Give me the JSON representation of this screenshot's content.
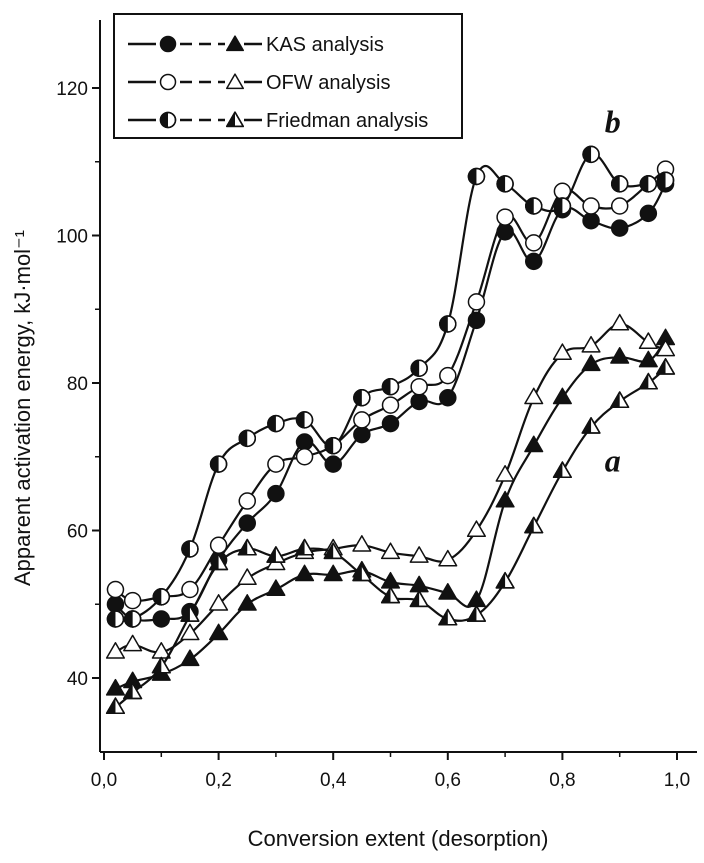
{
  "chart_data": {
    "type": "line",
    "xlabel": "Conversion extent (desorption)",
    "ylabel": "Apparent activation energy, kJ·mol⁻¹",
    "xlim": [
      0.0,
      1.0
    ],
    "ylim": [
      30,
      125
    ],
    "xticks": [
      0.0,
      0.2,
      0.4,
      0.6,
      0.8,
      1.0
    ],
    "xtick_labels": [
      "0,0",
      "0,2",
      "0,4",
      "0,6",
      "0,8",
      "1,0"
    ],
    "yticks": [
      40,
      60,
      80,
      100,
      120
    ],
    "ytick_labels": [
      "40",
      "60",
      "80",
      "100",
      "120"
    ],
    "legend": {
      "placement": "top-left",
      "entries": [
        {
          "label": "KAS analysis",
          "marker_b": "filled-circle",
          "marker_a": "filled-triangle"
        },
        {
          "label": "OFW analysis",
          "marker_b": "open-circle",
          "marker_a": "open-triangle"
        },
        {
          "label": "Friedman analysis",
          "marker_b": "half-circle",
          "marker_a": "half-triangle"
        }
      ]
    },
    "curve_labels": [
      {
        "text": "b",
        "x": 0.9,
        "y": 114
      },
      {
        "text": "a",
        "x": 0.9,
        "y": 68
      }
    ],
    "series": [
      {
        "group": "b",
        "method": "KAS",
        "marker": "filled-circle",
        "x": [
          0.02,
          0.05,
          0.1,
          0.15,
          0.2,
          0.25,
          0.3,
          0.35,
          0.4,
          0.45,
          0.5,
          0.55,
          0.6,
          0.65,
          0.7,
          0.75,
          0.8,
          0.85,
          0.9,
          0.95,
          0.98
        ],
        "y": [
          50,
          48,
          48,
          49,
          56,
          61,
          65,
          72,
          69,
          73,
          74.5,
          77.5,
          78,
          88.5,
          100.5,
          96.5,
          103.5,
          102,
          101,
          103,
          107
        ]
      },
      {
        "group": "b",
        "method": "OFW",
        "marker": "open-circle",
        "x": [
          0.02,
          0.05,
          0.1,
          0.15,
          0.2,
          0.25,
          0.3,
          0.35,
          0.4,
          0.45,
          0.5,
          0.55,
          0.6,
          0.65,
          0.7,
          0.75,
          0.8,
          0.85,
          0.9,
          0.95,
          0.98
        ],
        "y": [
          52,
          50.5,
          51,
          52,
          58,
          64,
          69,
          70,
          71.5,
          75,
          77,
          79.5,
          81,
          91,
          102.5,
          99,
          106,
          104,
          104,
          107,
          109
        ]
      },
      {
        "group": "b",
        "method": "Friedman",
        "marker": "half-circle",
        "x": [
          0.02,
          0.05,
          0.1,
          0.15,
          0.2,
          0.25,
          0.3,
          0.35,
          0.4,
          0.45,
          0.5,
          0.55,
          0.6,
          0.65,
          0.7,
          0.75,
          0.8,
          0.85,
          0.9,
          0.95,
          0.98
        ],
        "y": [
          48,
          48,
          51,
          57.5,
          69,
          72.5,
          74.5,
          75,
          71.5,
          78,
          79.5,
          82,
          88,
          108,
          107,
          104,
          104,
          111,
          107,
          107,
          107.5
        ]
      },
      {
        "group": "a",
        "method": "KAS",
        "marker": "filled-triangle",
        "x": [
          0.02,
          0.05,
          0.1,
          0.15,
          0.2,
          0.25,
          0.3,
          0.35,
          0.4,
          0.45,
          0.5,
          0.55,
          0.6,
          0.65,
          0.7,
          0.75,
          0.8,
          0.85,
          0.9,
          0.95,
          0.98
        ],
        "y": [
          38.5,
          39.5,
          40.5,
          42.5,
          46,
          50,
          52,
          54,
          54,
          54.5,
          53,
          52.5,
          51.5,
          50.5,
          64,
          71.5,
          78,
          82.5,
          83.5,
          83,
          86
        ]
      },
      {
        "group": "a",
        "method": "OFW",
        "marker": "open-triangle",
        "x": [
          0.02,
          0.05,
          0.1,
          0.15,
          0.2,
          0.25,
          0.3,
          0.35,
          0.4,
          0.45,
          0.5,
          0.55,
          0.6,
          0.65,
          0.7,
          0.75,
          0.8,
          0.85,
          0.9,
          0.95,
          0.98
        ],
        "y": [
          43.5,
          44.5,
          43.5,
          46,
          50,
          53.5,
          55.5,
          57,
          57.5,
          58,
          57,
          56.5,
          56,
          60,
          67.5,
          78,
          84,
          85,
          88,
          85.5,
          84.5
        ]
      },
      {
        "group": "a",
        "method": "Friedman",
        "marker": "half-triangle",
        "x": [
          0.02,
          0.05,
          0.1,
          0.15,
          0.2,
          0.25,
          0.3,
          0.35,
          0.4,
          0.45,
          0.5,
          0.55,
          0.6,
          0.65,
          0.7,
          0.75,
          0.8,
          0.85,
          0.9,
          0.95,
          0.98
        ],
        "y": [
          36,
          38,
          41.5,
          48.5,
          55.5,
          57.5,
          56.5,
          57.5,
          57,
          54,
          51,
          50.5,
          48,
          48.5,
          53,
          60.5,
          68,
          74,
          77.5,
          80,
          82
        ]
      }
    ]
  }
}
